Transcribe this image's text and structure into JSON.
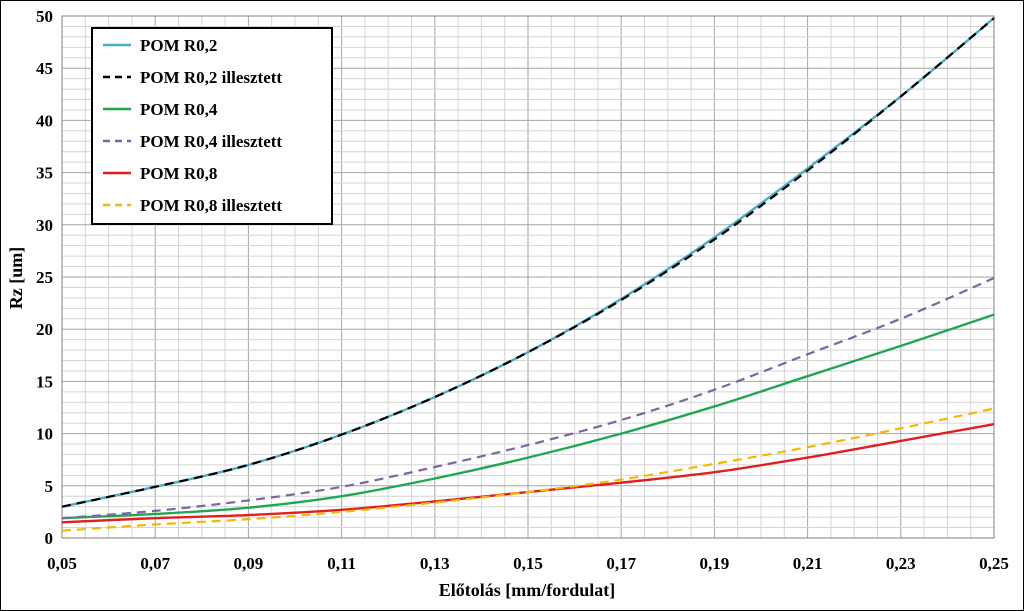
{
  "chart_data": {
    "type": "line",
    "xlabel": "Előtolás [mm/fordulat]",
    "ylabel": "Rz [um]",
    "xlim": [
      0.05,
      0.25
    ],
    "ylim": [
      0,
      50
    ],
    "x_ticks": [
      "0,05",
      "0,07",
      "0,09",
      "0,11",
      "0,13",
      "0,15",
      "0,17",
      "0,19",
      "0,21",
      "0,23",
      "0,25"
    ],
    "y_ticks": [
      "0",
      "5",
      "10",
      "15",
      "20",
      "25",
      "30",
      "35",
      "40",
      "45",
      "50"
    ],
    "grid": true,
    "legend_position": "top-left",
    "x": [
      0.05,
      0.07,
      0.09,
      0.11,
      0.13,
      0.15,
      0.17,
      0.19,
      0.21,
      0.23,
      0.25
    ],
    "series": [
      {
        "name": "POM R0,2",
        "color": "#4bacc6",
        "dash": "solid",
        "values": [
          3.0,
          4.9,
          7.0,
          9.9,
          13.5,
          17.8,
          22.9,
          28.8,
          35.4,
          42.3,
          49.8
        ]
      },
      {
        "name": "POM R0,2 illesztett",
        "color": "#000000",
        "dash": "dashed",
        "values": [
          3.0,
          4.9,
          7.0,
          9.9,
          13.5,
          17.8,
          22.8,
          28.6,
          35.2,
          42.3,
          49.8
        ]
      },
      {
        "name": "POM R0,4",
        "color": "#1fa84f",
        "dash": "solid",
        "values": [
          1.9,
          2.3,
          2.9,
          4.0,
          5.7,
          7.7,
          10.0,
          12.6,
          15.5,
          18.4,
          21.4
        ]
      },
      {
        "name": "POM R0,4 illesztett",
        "color": "#8064a2",
        "dash": "dashed",
        "values": [
          1.9,
          2.6,
          3.6,
          4.9,
          6.8,
          8.9,
          11.3,
          14.2,
          17.6,
          21.0,
          24.9
        ]
      },
      {
        "name": "POM R0,8",
        "color": "#e02020",
        "dash": "solid",
        "values": [
          1.5,
          1.9,
          2.2,
          2.7,
          3.5,
          4.4,
          5.3,
          6.3,
          7.7,
          9.3,
          10.9
        ]
      },
      {
        "name": "POM R0,8 illesztett",
        "color": "#f5b800",
        "dash": "dashed",
        "values": [
          0.7,
          1.3,
          1.8,
          2.5,
          3.4,
          4.4,
          5.6,
          7.1,
          8.7,
          10.5,
          12.4
        ]
      }
    ]
  }
}
